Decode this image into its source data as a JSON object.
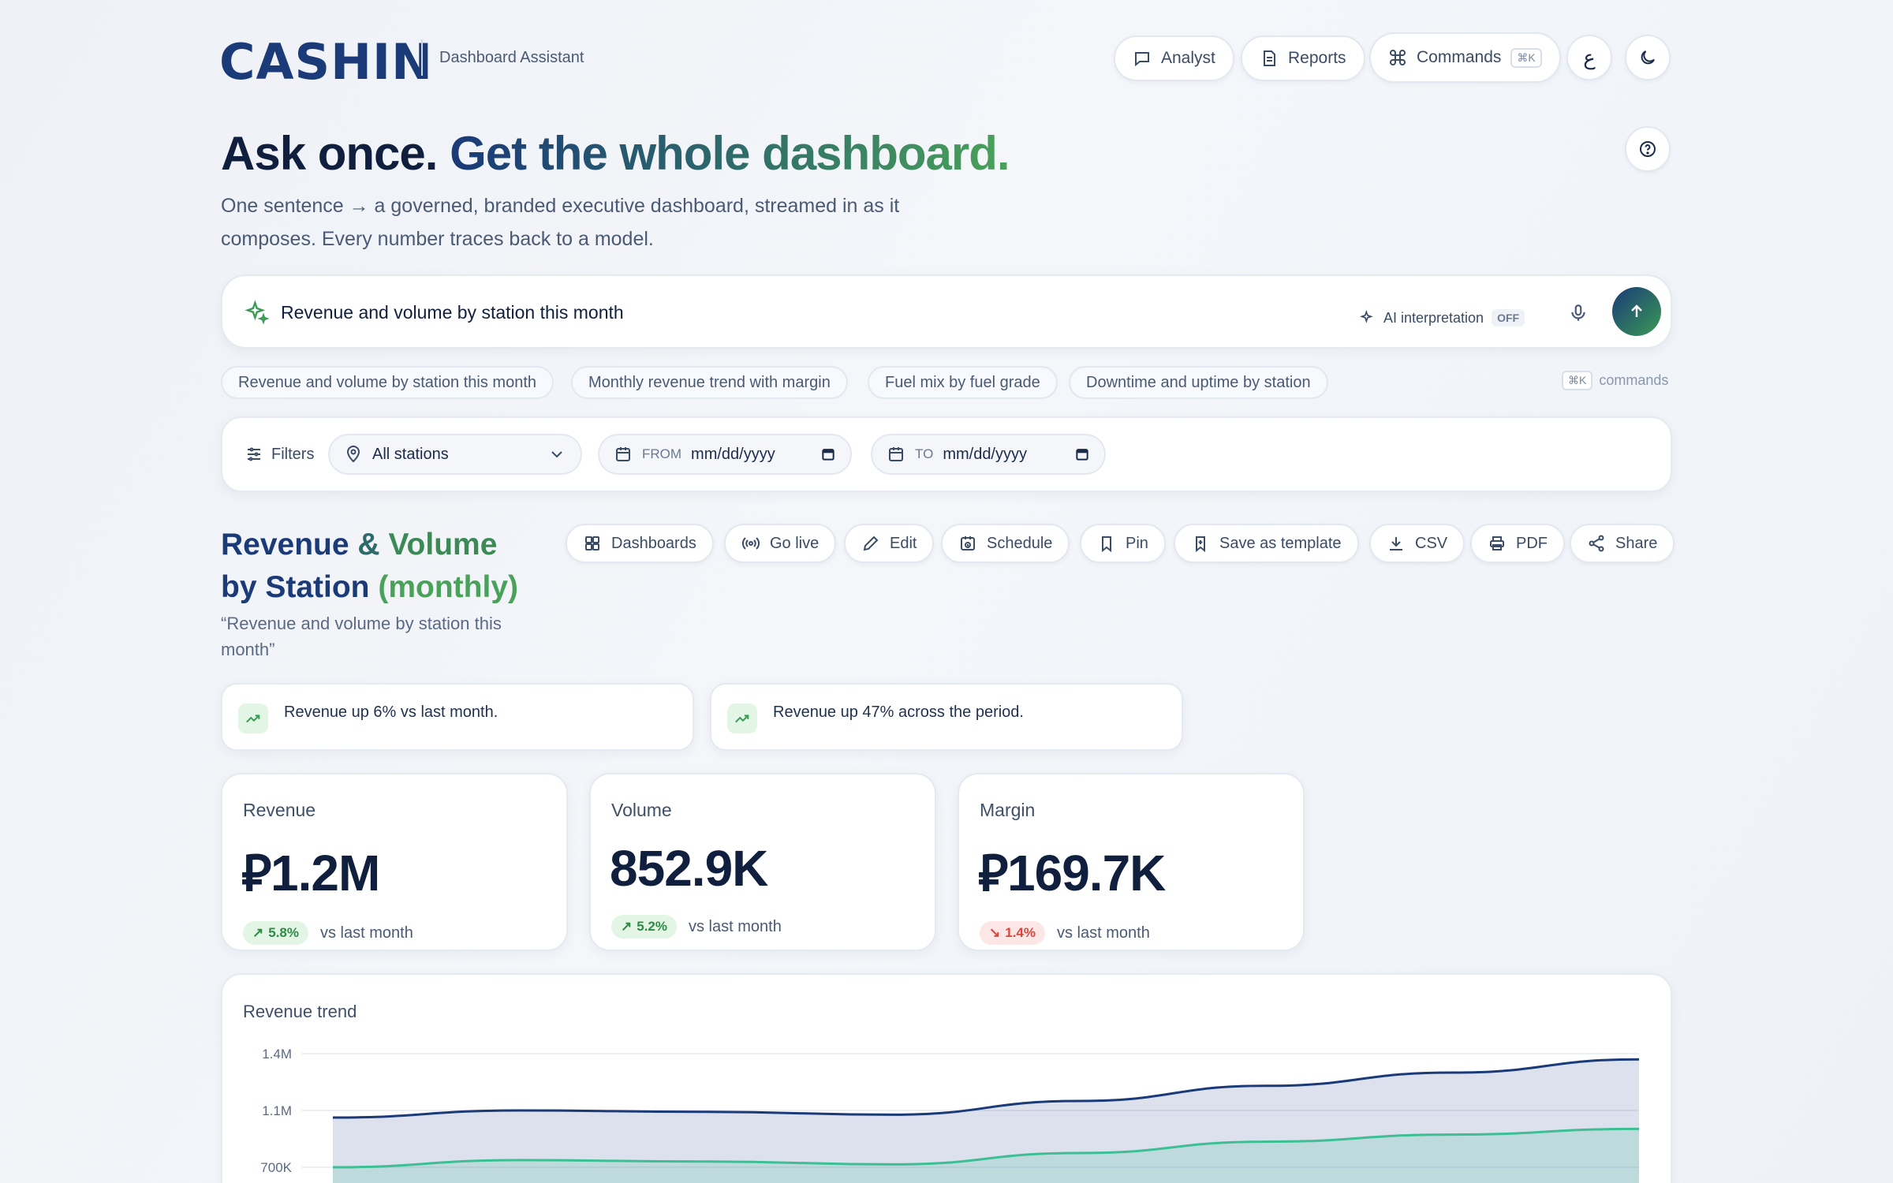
{
  "header": {
    "logo": "CASHIN",
    "subtitle": "Dashboard Assistant",
    "nav": [
      {
        "label": "Analyst",
        "icon": "chat-icon"
      },
      {
        "label": "Reports",
        "icon": "document-icon"
      },
      {
        "label": "Commands",
        "icon": "command-icon",
        "shortcut": "⌘K"
      }
    ],
    "lang_glyph": "ع",
    "theme_icon": "moon-icon"
  },
  "hero": {
    "title_part1": "Ask once.",
    "title_part2": "Get the whole dashboard.",
    "description": "One sentence → a governed, branded executive dashboard, streamed in as it composes. Every number traces back to a model."
  },
  "prompt": {
    "query": "Revenue and volume by station this month",
    "ai_label": "AI interpretation",
    "ai_state": "OFF"
  },
  "suggestions": [
    "Revenue and volume by station this month",
    "Monthly revenue trend with margin",
    "Fuel mix by fuel grade",
    "Downtime and uptime by station"
  ],
  "commands_hint": {
    "shortcut": "⌘K",
    "label": "commands"
  },
  "filters": {
    "label": "Filters",
    "station": "All stations",
    "from_label": "FROM",
    "from_placeholder": "mm/dd/yyyy",
    "to_label": "TO",
    "to_placeholder": "mm/dd/yyyy"
  },
  "dashboard": {
    "title_a": "Revenue",
    "title_amp": "&",
    "title_b": "Volume",
    "title_c": "by Station",
    "title_d": "(monthly)",
    "quote": "“Revenue and volume by station this month”",
    "actions": [
      "Dashboards",
      "Go live",
      "Edit",
      "Schedule",
      "Pin",
      "Save as template",
      "CSV",
      "PDF",
      "Share"
    ]
  },
  "insights": [
    {
      "text": "Revenue up 6% vs last month.",
      "icon": "trend-up-icon"
    },
    {
      "text": "Revenue up 47% across the period.",
      "icon": "trend-up-icon"
    }
  ],
  "kpis": [
    {
      "label": "Revenue",
      "value": "⃁1.2M",
      "change": "5.8%",
      "direction": "up",
      "sub": "vs last month"
    },
    {
      "label": "Volume",
      "value": "852.9K",
      "change": "5.2%",
      "direction": "up",
      "sub": "vs last month"
    },
    {
      "label": "Margin",
      "value": "⃁169.7K",
      "change": "1.4%",
      "direction": "down",
      "sub": "vs last month"
    }
  ],
  "colors": {
    "navy": "#1a3a78",
    "green": "#3b9a55",
    "teal": "#3dbf94"
  },
  "chart_data": {
    "type": "area",
    "title": "Revenue trend",
    "y_ticks": [
      "1.4M",
      "1.1M",
      "700K"
    ],
    "ylim": [
      0,
      1400000
    ],
    "series": [
      {
        "values": [
          1050000,
          1100000,
          1090000,
          1070000,
          1150000,
          1230000,
          1300000,
          1370000
        ]
      },
      {
        "values": [
          700000,
          750000,
          740000,
          720000,
          800000,
          880000,
          930000,
          970000
        ]
      }
    ],
    "grid": true
  }
}
